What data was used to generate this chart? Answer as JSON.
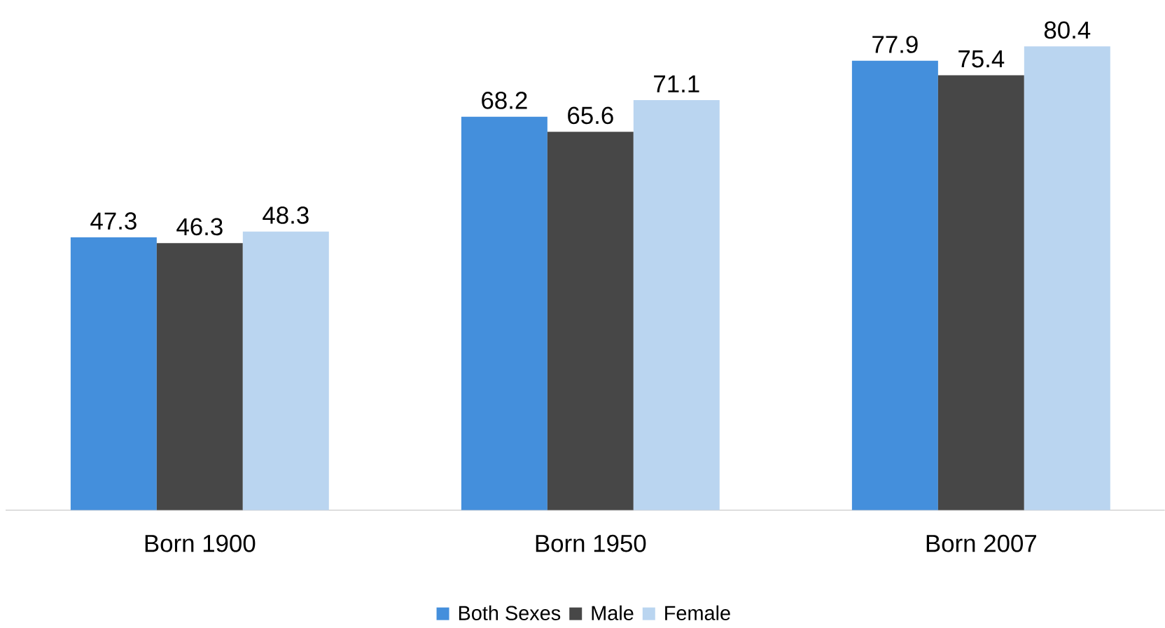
{
  "chart_data": {
    "type": "bar",
    "categories": [
      "Born 1900",
      "Born 1950",
      "Born 2007"
    ],
    "series": [
      {
        "name": "Both Sexes",
        "color": "#448fdc",
        "values": [
          47.3,
          68.2,
          77.9
        ]
      },
      {
        "name": "Male",
        "color": "#474747",
        "values": [
          46.3,
          65.6,
          75.4
        ]
      },
      {
        "name": "Female",
        "color": "#bad5f0",
        "values": [
          48.3,
          71.1,
          80.4
        ]
      }
    ],
    "data_labels": true,
    "legend": "bottom"
  }
}
